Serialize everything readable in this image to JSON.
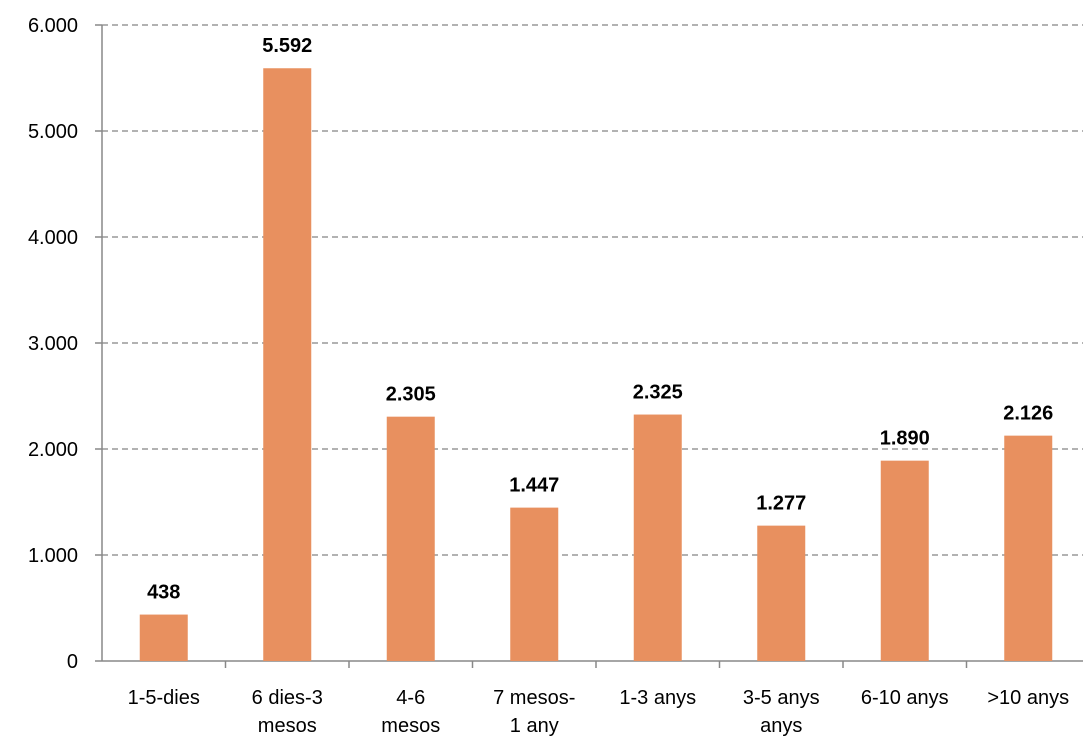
{
  "chart_data": {
    "type": "bar",
    "categories": [
      [
        "1-5-dies"
      ],
      [
        "6 dies-3",
        "mesos"
      ],
      [
        "4-6",
        "mesos"
      ],
      [
        "7 mesos-",
        "1 any"
      ],
      [
        "1-3 anys"
      ],
      [
        "3-5 anys",
        "anys"
      ],
      [
        "6-10 anys"
      ],
      [
        ">10 anys"
      ]
    ],
    "values": [
      438,
      5592,
      2305,
      1447,
      2325,
      1277,
      1890,
      2126
    ],
    "data_labels": [
      "438",
      "5.592",
      "2.305",
      "1.447",
      "2.325",
      "1.277",
      "1.890",
      "2.126"
    ],
    "y_ticks": [
      0,
      1000,
      2000,
      3000,
      4000,
      5000,
      6000
    ],
    "y_tick_labels": [
      "0",
      "1.000",
      "2.000",
      "3.000",
      "4.000",
      "5.000",
      "6.000"
    ],
    "ylim": [
      0,
      6000
    ],
    "title": "",
    "xlabel": "",
    "ylabel": "",
    "grid": true,
    "grid_style": "dashed",
    "legend": "none",
    "bar_color": "#E8905F",
    "grid_color": "#999999",
    "axis_color": "#888888"
  }
}
